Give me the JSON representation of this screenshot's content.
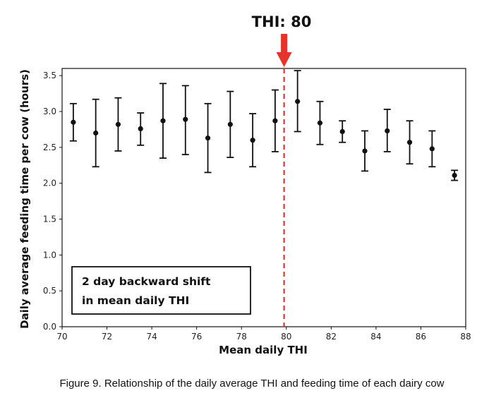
{
  "chart_data": {
    "type": "scatter",
    "title": "THI: 80",
    "xlabel": "Mean daily THI",
    "ylabel": "Daily average feeding time per cow (hours)",
    "xlim": [
      70,
      88
    ],
    "ylim": [
      0,
      3.6
    ],
    "x_ticks": [
      "70",
      "72",
      "74",
      "76",
      "78",
      "80",
      "82",
      "84",
      "86",
      "88"
    ],
    "y_ticks": [
      "0.0",
      "0.5",
      "1.0",
      "1.5",
      "2.0",
      "2.5",
      "3.0",
      "3.5"
    ],
    "grid": false,
    "threshold_line": {
      "x": 79.9,
      "style": "dashed",
      "color": "#e8322a"
    },
    "arrow_color": "#e8322a",
    "points": [
      {
        "x": 70.5,
        "y": 2.85,
        "low": 2.59,
        "high": 3.11
      },
      {
        "x": 71.5,
        "y": 2.7,
        "low": 2.23,
        "high": 3.17
      },
      {
        "x": 72.5,
        "y": 2.82,
        "low": 2.45,
        "high": 3.19
      },
      {
        "x": 73.5,
        "y": 2.76,
        "low": 2.53,
        "high": 2.98
      },
      {
        "x": 74.5,
        "y": 2.87,
        "low": 2.35,
        "high": 3.39
      },
      {
        "x": 75.5,
        "y": 2.89,
        "low": 2.4,
        "high": 3.36
      },
      {
        "x": 76.5,
        "y": 2.63,
        "low": 2.15,
        "high": 3.11
      },
      {
        "x": 77.5,
        "y": 2.82,
        "low": 2.36,
        "high": 3.28
      },
      {
        "x": 78.5,
        "y": 2.6,
        "low": 2.23,
        "high": 2.97
      },
      {
        "x": 79.5,
        "y": 2.87,
        "low": 2.44,
        "high": 3.3
      },
      {
        "x": 80.5,
        "y": 3.14,
        "low": 2.72,
        "high": 3.57
      },
      {
        "x": 81.5,
        "y": 2.84,
        "low": 2.54,
        "high": 3.14
      },
      {
        "x": 82.5,
        "y": 2.72,
        "low": 2.57,
        "high": 2.87
      },
      {
        "x": 83.5,
        "y": 2.45,
        "low": 2.17,
        "high": 2.73
      },
      {
        "x": 84.5,
        "y": 2.73,
        "low": 2.44,
        "high": 3.03
      },
      {
        "x": 85.5,
        "y": 2.57,
        "low": 2.27,
        "high": 2.87
      },
      {
        "x": 86.5,
        "y": 2.48,
        "low": 2.23,
        "high": 2.73
      },
      {
        "x": 87.5,
        "y": 2.11,
        "low": 2.04,
        "high": 2.18
      }
    ],
    "annotation_box": {
      "lines": [
        "2 day backward shift",
        "in mean daily THI"
      ]
    }
  },
  "caption": "Figure 9. Relationship of the daily average THI and feeding time of each dairy cow"
}
